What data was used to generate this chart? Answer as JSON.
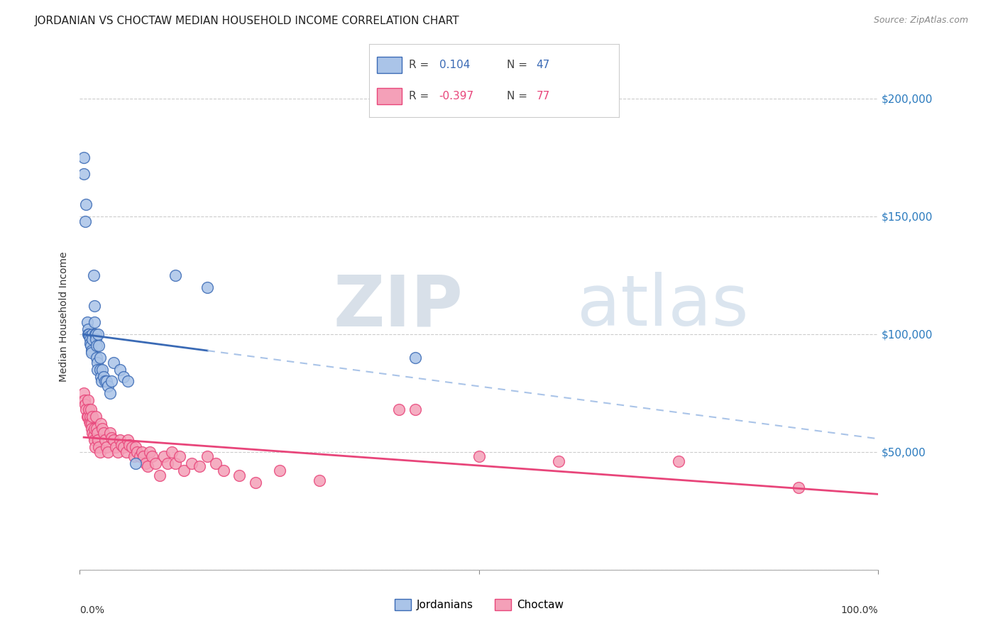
{
  "title": "JORDANIAN VS CHOCTAW MEDIAN HOUSEHOLD INCOME CORRELATION CHART",
  "source": "Source: ZipAtlas.com",
  "ylabel": "Median Household Income",
  "watermark_zip": "ZIP",
  "watermark_atlas": "atlas",
  "jordanian": {
    "label": "Jordanians",
    "R": 0.104,
    "N": 47,
    "color_fill": "#aac4e8",
    "color_line": "#3a6ab5",
    "color_dash": "#aac4e8",
    "x": [
      0.005,
      0.005,
      0.007,
      0.008,
      0.009,
      0.01,
      0.01,
      0.011,
      0.012,
      0.013,
      0.013,
      0.014,
      0.015,
      0.015,
      0.016,
      0.016,
      0.017,
      0.018,
      0.018,
      0.019,
      0.02,
      0.02,
      0.021,
      0.021,
      0.022,
      0.022,
      0.023,
      0.024,
      0.025,
      0.025,
      0.026,
      0.027,
      0.028,
      0.03,
      0.032,
      0.033,
      0.035,
      0.038,
      0.04,
      0.042,
      0.05,
      0.055,
      0.06,
      0.07,
      0.12,
      0.16,
      0.42
    ],
    "y": [
      175000,
      168000,
      148000,
      155000,
      105000,
      102000,
      100000,
      100000,
      99000,
      98000,
      96000,
      95000,
      93000,
      92000,
      100000,
      98000,
      125000,
      112000,
      105000,
      100000,
      100000,
      98000,
      95000,
      90000,
      88000,
      85000,
      100000,
      95000,
      90000,
      85000,
      82000,
      80000,
      85000,
      82000,
      80000,
      80000,
      78000,
      75000,
      80000,
      88000,
      85000,
      82000,
      80000,
      45000,
      125000,
      120000,
      90000
    ]
  },
  "choctaw": {
    "label": "Choctaw",
    "R": -0.397,
    "N": 77,
    "color_fill": "#f4a0b8",
    "color_line": "#e8457a",
    "x": [
      0.005,
      0.006,
      0.007,
      0.008,
      0.009,
      0.01,
      0.01,
      0.011,
      0.012,
      0.013,
      0.013,
      0.014,
      0.015,
      0.015,
      0.016,
      0.016,
      0.017,
      0.018,
      0.018,
      0.019,
      0.02,
      0.021,
      0.022,
      0.023,
      0.024,
      0.025,
      0.026,
      0.028,
      0.03,
      0.032,
      0.033,
      0.035,
      0.038,
      0.04,
      0.042,
      0.045,
      0.048,
      0.05,
      0.052,
      0.055,
      0.058,
      0.06,
      0.062,
      0.065,
      0.068,
      0.07,
      0.072,
      0.075,
      0.078,
      0.08,
      0.082,
      0.085,
      0.088,
      0.09,
      0.095,
      0.1,
      0.105,
      0.11,
      0.115,
      0.12,
      0.125,
      0.13,
      0.14,
      0.15,
      0.16,
      0.17,
      0.18,
      0.2,
      0.22,
      0.25,
      0.3,
      0.4,
      0.42,
      0.5,
      0.6,
      0.75,
      0.9
    ],
    "y": [
      75000,
      72000,
      70000,
      68000,
      65000,
      72000,
      65000,
      68000,
      63000,
      65000,
      62000,
      68000,
      62000,
      60000,
      58000,
      65000,
      57000,
      55000,
      60000,
      52000,
      65000,
      60000,
      58000,
      55000,
      52000,
      50000,
      62000,
      60000,
      58000,
      55000,
      52000,
      50000,
      58000,
      56000,
      55000,
      52000,
      50000,
      55000,
      53000,
      52000,
      50000,
      55000,
      53000,
      52000,
      48000,
      52000,
      50000,
      48000,
      50000,
      48000,
      45000,
      44000,
      50000,
      48000,
      45000,
      40000,
      48000,
      45000,
      50000,
      45000,
      48000,
      42000,
      45000,
      44000,
      48000,
      45000,
      42000,
      40000,
      37000,
      42000,
      38000,
      68000,
      68000,
      48000,
      46000,
      46000,
      35000
    ]
  },
  "yticks": [
    0,
    50000,
    100000,
    150000,
    200000
  ],
  "ytick_labels": [
    "",
    "$50,000",
    "$100,000",
    "$150,000",
    "$200,000"
  ],
  "ylim": [
    0,
    215000
  ],
  "xlim": [
    0.0,
    1.0
  ],
  "background_color": "#ffffff",
  "grid_color": "#cccccc"
}
